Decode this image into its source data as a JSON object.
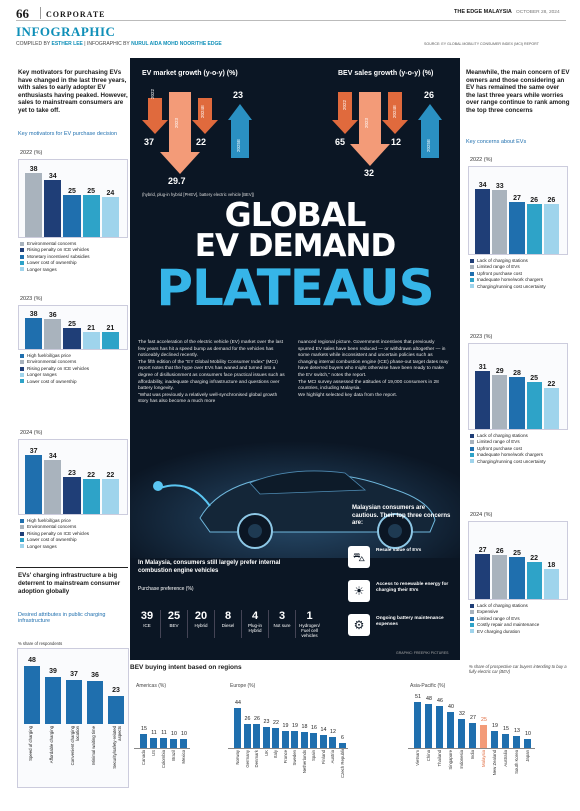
{
  "header": {
    "page_number": "66",
    "section": "CORPORATE",
    "title": "INFOGRAPHIC",
    "brand": "THE EDGE MALAYSIA",
    "date": "OCTOBER 28, 2024",
    "credits_prefix": "COMPILED BY",
    "compiler": "ESTHER LEE",
    "credits_mid": "INFOGRAPHIC BY",
    "designer": "NURUL AIDA MOHD NOOR/THE EDGE",
    "source": "SOURCE: EY GLOBAL MOBILITY CONSUMER INDEX (MCI) REPORT"
  },
  "left": {
    "intro": "Key motivators for purchasing EVs have changed in the last three years, with sales to early adopter EV enthusiasts having peaked. However, sales to mainstream consumers are yet to take off.",
    "subtitle": "Key motivators for EV purchase decision",
    "charts": [
      {
        "year": "2022 (%)",
        "values": [
          38,
          34,
          25,
          25,
          24
        ],
        "colors": [
          "#a9b3bd",
          "#1f3e77",
          "#1f6fae",
          "#2ea3c8",
          "#9fd4ec"
        ],
        "legend": [
          "Environmental concerns",
          "Rising penalty on ICE vehicles",
          "Monetary incentives/ subsidies",
          "Lower cost of ownership",
          "Longer ranges"
        ]
      },
      {
        "year": "2023 (%)",
        "values": [
          38,
          36,
          25,
          21,
          21
        ],
        "colors": [
          "#1f6fae",
          "#a9b3bd",
          "#1f3e77",
          "#9fd4ec",
          "#2ea3c8"
        ],
        "legend": [
          "High fuel/oil/gas price",
          "Environmental concerns",
          "Rising penalty on ICE vehicles",
          "Longer ranges",
          "Lower cost of ownership"
        ]
      },
      {
        "year": "2024 (%)",
        "values": [
          37,
          34,
          23,
          22,
          22
        ],
        "colors": [
          "#1f6fae",
          "#a9b3bd",
          "#1f3e77",
          "#2ea3c8",
          "#9fd4ec"
        ],
        "legend": [
          "High fuel/oil/gas price",
          "Environmental concerns",
          "Rising penalty on ICE vehicles",
          "Lower cost of ownership",
          "Longer ranges"
        ]
      }
    ],
    "charging_title": "EVs' charging infrastructure a big deterrent to mainstream consumer adoption globally",
    "charging_subtitle": "Desired attributes in public charging infrastructure",
    "charging_unit": "% share of respondents",
    "charging_values": [
      48,
      39,
      37,
      36,
      23
    ],
    "charging_labels": [
      "Speed of charging",
      "Affordable charging",
      "Convenient charging location",
      "Minimal waiting time",
      "Security/safety-related aspects"
    ]
  },
  "right": {
    "intro": "Meanwhile, the main concern of EV owners and those considering an EV has remained the same over the last three years while worries over range continue to rank among the top three concerns",
    "subtitle": "Key concerns about EVs",
    "charts": [
      {
        "year": "2022 (%)",
        "values": [
          34,
          33,
          27,
          26,
          26
        ],
        "colors": [
          "#1f3e77",
          "#a9b3bd",
          "#1f6fae",
          "#2ea3c8",
          "#9fd4ec"
        ],
        "legend": [
          "Lack of charging stations",
          "Limited range of EVs",
          "Upfront purchase cost",
          "Inadequate home/work chargers",
          "Charging/running cost uncertainty"
        ]
      },
      {
        "year": "2023 (%)",
        "values": [
          31,
          29,
          28,
          25,
          22
        ],
        "colors": [
          "#1f3e77",
          "#a9b3bd",
          "#1f6fae",
          "#2ea3c8",
          "#9fd4ec"
        ],
        "legend": [
          "Lack of charging stations",
          "Limited range of EVs",
          "Upfront purchase cost",
          "Inadequate home/work chargers",
          "Charging/running cost uncertainty"
        ]
      },
      {
        "year": "2024 (%)",
        "values": [
          27,
          26,
          25,
          22,
          18
        ],
        "colors": [
          "#1f3e77",
          "#a9b3bd",
          "#1f6fae",
          "#2ea3c8",
          "#9fd4ec"
        ],
        "legend": [
          "Lack of charging stations",
          "Expensive",
          "Limited range of EVs",
          "Costly repair and maintenance",
          "EV charging duration"
        ]
      }
    ]
  },
  "center": {
    "ev_market_title": "EV market growth (y-o-y) (%)",
    "ev_market": {
      "y2022": "2022",
      "y2023": "2023",
      "y2024": "2024E",
      "y2025": "2025E",
      "v2022": "37",
      "v2023": "29.7",
      "v2024": "22",
      "v2025": "23"
    },
    "ev_note": "(hybrid, plug-in hybrid [PHEV], battery electric vehicle [BEV])",
    "bev_sales_title": "BEV sales growth (y-o-y) (%)",
    "bev_sales": {
      "y2022": "2022",
      "y2023": "2023",
      "y2024": "2024E",
      "y2025": "2025E",
      "v2022": "65",
      "v2023": "32",
      "v2024": "12",
      "v2025": "26"
    },
    "headline1": "GLOBAL",
    "headline2": "EV DEMAND",
    "headline3": "PLATEAUS",
    "col1": "The fast acceleration of the electric vehicle (EV) market over the last few years has hit a speed bump as demand for the vehicles has noticeably declined recently.\n   The fifth edition of the \"EY Global Mobility Consumer Index\" (MCI) report notes that the hype over EVs has waned and turned into a degree of disillusionment as consumers face practical issues such as affordability, inadequate charging infrastructure and questions over battery longevity.\n   \"What was previously a relatively well-synchronised global growth story has also become a much more",
    "col2": "nuanced regional picture. Government incentives that previously spurred EV sales have been reduced — or withdrawn altogether — in some markets while inconsistent and uncertain policies such as changing internal combustion engine (ICE) phase-out target dates may have deterred buyers who might otherwise have been ready to make the EV switch,\" notes the report.\n   The MCI survey assessed the attitudes of 19,000 consumers in 28 countries, including Malaysia.\n   We highlight selected key data from the report.",
    "malaysia_title": "In Malaysia, consumers still largely prefer internal combustion engine vehicles",
    "pref_title": "Purchase preference (%)",
    "pref": [
      {
        "v": "39",
        "l": "ICE"
      },
      {
        "v": "25",
        "l": "BEV"
      },
      {
        "v": "20",
        "l": "Hybrid"
      },
      {
        "v": "8",
        "l": "Diesel"
      },
      {
        "v": "4",
        "l": "Plug-in Hybrid"
      },
      {
        "v": "3",
        "l": "Not sure"
      },
      {
        "v": "1",
        "l": "Hydrogen/ Fuel cell vehicles"
      }
    ],
    "concerns_title": "Malaysian consumers are cautious. Their top three concerns are:",
    "concerns": [
      "Resale value of EVs",
      "Access to renewable energy for charging their EVs",
      "Ongoing battery maintenance expenses"
    ],
    "photo_credit": "GRAPHIC: FREEPIK/ PICTURES"
  },
  "bev": {
    "title": "BEV buying intent based on regions",
    "note": "% share of prospective car buyers intending to buy a fully electric car (BEV)",
    "regions": [
      {
        "name": "Americas (%)",
        "labels": [
          "Canada",
          "US",
          "Colombia",
          "Brazil",
          "Mexico"
        ],
        "values": [
          15,
          11,
          11,
          10,
          10
        ]
      },
      {
        "name": "Europe (%)",
        "labels": [
          "Norway",
          "Germany",
          "Denmark",
          "UK",
          "Italy",
          "France",
          "Sweden",
          "Netherlands",
          "Spain",
          "Finland",
          "Austria",
          "Czech Republic"
        ],
        "values": [
          44,
          26,
          26,
          23,
          22,
          19,
          19,
          18,
          16,
          14,
          12,
          6
        ]
      },
      {
        "name": "Asia-Pacific (%)",
        "labels": [
          "Vietnam",
          "China",
          "Thailand",
          "Singapore",
          "Indonesia",
          "India",
          "Malaysia",
          "New Zealand",
          "Australia",
          "South Korea",
          "Japan"
        ],
        "values": [
          51,
          48,
          46,
          40,
          32,
          27,
          25,
          19,
          15,
          13,
          10
        ]
      }
    ],
    "highlight": "Malaysia"
  }
}
